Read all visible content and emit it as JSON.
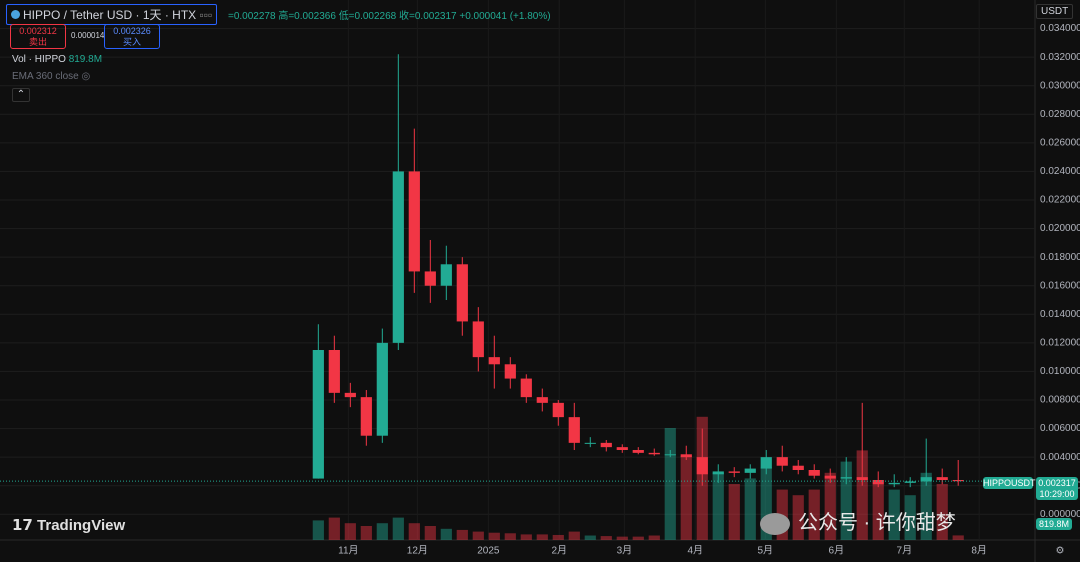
{
  "header": {
    "symbol": "HIPPO / Tether USD · 1天 · HTX",
    "open": "=0.002278",
    "high": "高=0.002366",
    "low": "低=0.002268",
    "close": "收=0.002317",
    "change": "+0.000041 (+1.80%)",
    "sell_price": "0.002312",
    "sell": "卖出",
    "spread": "0.000014",
    "buy_price": "0.002326",
    "buy": "买入",
    "vol_label": "Vol · HIPPO",
    "vol_value": "819.8M",
    "ema_label": "EMA 360 close",
    "currency": "USDT",
    "symbol_badge": "HIPPOUSDT",
    "countdown": "10:29:00",
    "logo": "TradingView",
    "watermark": "公众号 · 许你甜梦"
  },
  "chart_data": {
    "type": "candlestick",
    "x": [
      0.5,
      1.5,
      2.5,
      3.5,
      4.5,
      5.5,
      6.5,
      7.5,
      8.5,
      9.5,
      10.5,
      11.5,
      12.5,
      13.5,
      14.5,
      15.5,
      16.5,
      17.5,
      18.5,
      19.5,
      20.5,
      21.5,
      22.5,
      23.5,
      24.5,
      25.5,
      26.5,
      27.5,
      28.5,
      29.5,
      30.5,
      31.5,
      32.5,
      33.5,
      34.5,
      35.5,
      36.5,
      37.5,
      38.5,
      39.5,
      40.5
    ],
    "open": [
      0.0025,
      0.0115,
      0.0085,
      0.0082,
      0.0055,
      0.012,
      0.024,
      0.017,
      0.016,
      0.0175,
      0.0135,
      0.011,
      0.0105,
      0.0095,
      0.0082,
      0.0078,
      0.0068,
      0.005,
      0.005,
      0.0047,
      0.0045,
      0.0043,
      0.0042,
      0.0042,
      0.004,
      0.0028,
      0.003,
      0.0029,
      0.0032,
      0.004,
      0.0034,
      0.0031,
      0.0027,
      0.0025,
      0.0026,
      0.0024,
      0.0021,
      0.0022,
      0.0023,
      0.0026,
      0.0024
    ],
    "high": [
      0.0133,
      0.0125,
      0.0092,
      0.0087,
      0.013,
      0.0322,
      0.027,
      0.0192,
      0.0188,
      0.018,
      0.0145,
      0.0125,
      0.011,
      0.0098,
      0.0088,
      0.008,
      0.0078,
      0.0054,
      0.0052,
      0.0049,
      0.0047,
      0.0046,
      0.0045,
      0.0048,
      0.006,
      0.0035,
      0.0033,
      0.0035,
      0.0045,
      0.0048,
      0.0038,
      0.0035,
      0.0032,
      0.004,
      0.0078,
      0.003,
      0.0028,
      0.0026,
      0.0053,
      0.0032,
      0.0038
    ],
    "low": [
      0.0025,
      0.0078,
      0.0075,
      0.0048,
      0.005,
      0.0115,
      0.0155,
      0.0148,
      0.015,
      0.0125,
      0.01,
      0.0088,
      0.0088,
      0.0078,
      0.0072,
      0.0062,
      0.0045,
      0.0047,
      0.0044,
      0.0043,
      0.0042,
      0.0041,
      0.004,
      0.0038,
      0.002,
      0.0022,
      0.0026,
      0.0025,
      0.0028,
      0.003,
      0.0028,
      0.0025,
      0.0022,
      0.0021,
      0.002,
      0.0019,
      0.0019,
      0.0019,
      0.002,
      0.0021,
      0.002
    ],
    "close": [
      0.0115,
      0.0085,
      0.0082,
      0.0055,
      0.012,
      0.024,
      0.017,
      0.016,
      0.0175,
      0.0135,
      0.011,
      0.0105,
      0.0095,
      0.0082,
      0.0078,
      0.0068,
      0.005,
      0.005,
      0.0047,
      0.0045,
      0.0043,
      0.0042,
      0.0042,
      0.004,
      0.0028,
      0.003,
      0.0029,
      0.0032,
      0.004,
      0.0034,
      0.0031,
      0.0027,
      0.0025,
      0.0026,
      0.0024,
      0.0021,
      0.0022,
      0.0023,
      0.0026,
      0.0024,
      0.002317
    ],
    "volume": [
      3500000000,
      4000000000,
      3000000000,
      2500000000,
      3000000000,
      4000000000,
      3000000000,
      2500000000,
      2000000000,
      1800000000,
      1500000000,
      1300000000,
      1200000000,
      1000000000,
      1000000000,
      900000000,
      1500000000,
      800000000,
      700000000,
      600000000,
      600000000,
      800000000,
      20000000000,
      15000000000,
      22000000000,
      12000000000,
      10000000000,
      11000000000,
      13000000000,
      9000000000,
      8000000000,
      9000000000,
      12000000000,
      14000000000,
      16000000000,
      10000000000,
      9000000000,
      8000000000,
      12000000000,
      10000000000,
      819800000
    ],
    "up_color": "#22ab94",
    "down_color": "#f23645",
    "xlim": [
      -19.4,
      45.3
    ],
    "xticks": [
      {
        "value": 2.375,
        "label": "11月"
      },
      {
        "value": 6.69,
        "label": "12月"
      },
      {
        "value": 11.13,
        "label": "2025"
      },
      {
        "value": 15.56,
        "label": "2月"
      },
      {
        "value": 19.63,
        "label": "3月"
      },
      {
        "value": 24.06,
        "label": "4月"
      },
      {
        "value": 28.44,
        "label": "5月"
      },
      {
        "value": 32.88,
        "label": "6月"
      },
      {
        "value": 37.13,
        "label": "7月"
      },
      {
        "value": 41.81,
        "label": "8月"
      }
    ],
    "ylim": [
      -0.0018,
      0.036
    ],
    "yticks": [
      {
        "value": 0,
        "label": "0.000000"
      },
      {
        "value": 0.002,
        "label": "0.002000"
      },
      {
        "value": 0.004,
        "label": "0.004000"
      },
      {
        "value": 0.006,
        "label": "0.006000"
      },
      {
        "value": 0.008,
        "label": "0.008000"
      },
      {
        "value": 0.01,
        "label": "0.010000"
      },
      {
        "value": 0.012,
        "label": "0.012000"
      },
      {
        "value": 0.014,
        "label": "0.014000"
      },
      {
        "value": 0.016,
        "label": "0.016000"
      },
      {
        "value": 0.018,
        "label": "0.018000"
      },
      {
        "value": 0.02,
        "label": "0.020000"
      },
      {
        "value": 0.022,
        "label": "0.022000"
      },
      {
        "value": 0.024,
        "label": "0.024000"
      },
      {
        "value": 0.026,
        "label": "0.026000"
      },
      {
        "value": 0.028,
        "label": "0.028000"
      },
      {
        "value": 0.03,
        "label": "0.030000"
      },
      {
        "value": 0.032,
        "label": "0.032000"
      },
      {
        "value": 0.034,
        "label": "0.034000"
      }
    ],
    "y2lim": [
      0,
      25000000000
    ],
    "grid": true
  }
}
